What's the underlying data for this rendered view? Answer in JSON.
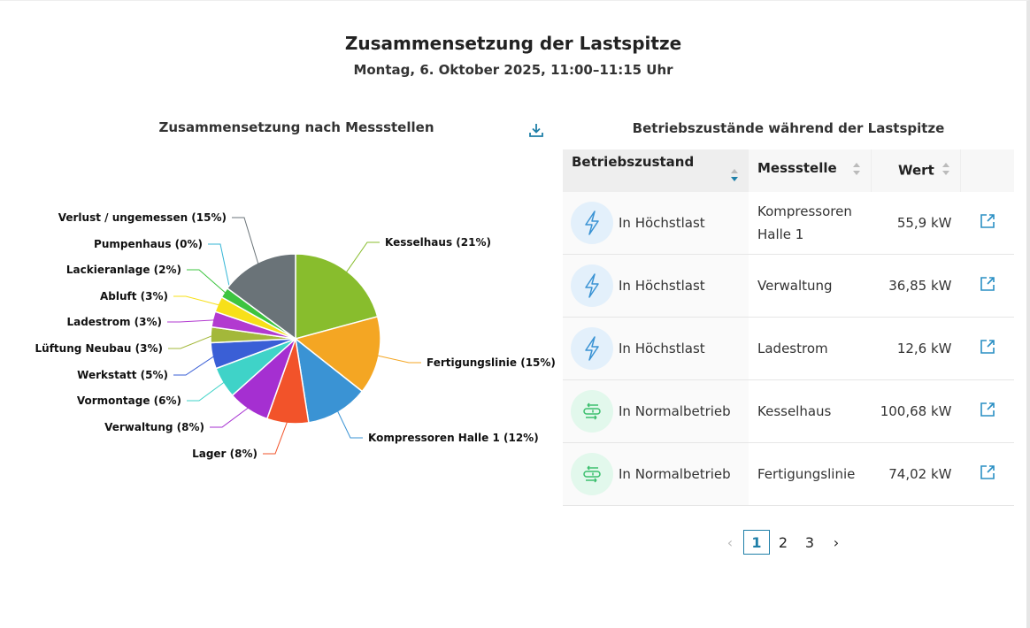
{
  "header": {
    "title": "Zusammensetzung der Lastspitze",
    "subtitle": "Montag, 6. Oktober 2025, 11:00–11:15 Uhr"
  },
  "left": {
    "heading": "Zusammensetzung nach Messstellen",
    "download_icon": "download-icon"
  },
  "chart_data": {
    "type": "pie",
    "unit": "%",
    "slices": [
      {
        "label": "Kesselhaus (21%)",
        "value": 21,
        "color": "#88bd2d"
      },
      {
        "label": "Fertigungslinie (15%)",
        "value": 15,
        "color": "#f4a623"
      },
      {
        "label": "Kompressoren Halle 1 (12%)",
        "value": 12,
        "color": "#3a93d4"
      },
      {
        "label": "Lager (8%)",
        "value": 8,
        "color": "#f2532a"
      },
      {
        "label": "Verwaltung (8%)",
        "value": 8,
        "color": "#a52fd1"
      },
      {
        "label": "Vormontage (6%)",
        "value": 6,
        "color": "#3fd3c8"
      },
      {
        "label": "Werkstatt (5%)",
        "value": 5,
        "color": "#3a5fd6"
      },
      {
        "label": "Lüftung Neubau (3%)",
        "value": 3,
        "color": "#a3b83a"
      },
      {
        "label": "Ladestrom (3%)",
        "value": 3,
        "color": "#b23ad0"
      },
      {
        "label": "Abluft (3%)",
        "value": 3,
        "color": "#f7e019"
      },
      {
        "label": "Lackieranlage (2%)",
        "value": 2,
        "color": "#3dc43f"
      },
      {
        "label": "Pumpenhaus (0%)",
        "value": 0,
        "color": "#35b6d6"
      },
      {
        "label": "Verlust / ungemessen (15%)",
        "value": 15,
        "color": "#6a7378"
      }
    ]
  },
  "right": {
    "heading": "Betriebszustände während der Lastspitze",
    "columns": [
      "Betriebszustand",
      "Messstelle",
      "Wert"
    ],
    "rows": [
      {
        "state": "In Höchstlast",
        "icon": "lightning-icon",
        "station": "Kompressoren Halle 1",
        "value": "55,9 kW"
      },
      {
        "state": "In Höchstlast",
        "icon": "lightning-icon",
        "station": "Verwaltung",
        "value": "36,85 kW"
      },
      {
        "state": "In Höchstlast",
        "icon": "lightning-icon",
        "station": "Ladestrom",
        "value": "12,6 kW"
      },
      {
        "state": "In Normalbetrieb",
        "icon": "toggle-arrows-icon",
        "station": "Kesselhaus",
        "value": "100,68 kW"
      },
      {
        "state": "In Normalbetrieb",
        "icon": "toggle-arrows-icon",
        "station": "Fertigungslinie",
        "value": "74,02 kW"
      }
    ],
    "pagination": {
      "pages": [
        "1",
        "2",
        "3"
      ],
      "current": "1"
    }
  },
  "colors": {
    "accent": "#1f7fa8",
    "peak_bg": "#e3f0fb",
    "normal_bg": "#e2f8ec",
    "peak_icon": "#3a93d4",
    "normal_icon": "#3cbf6e"
  }
}
